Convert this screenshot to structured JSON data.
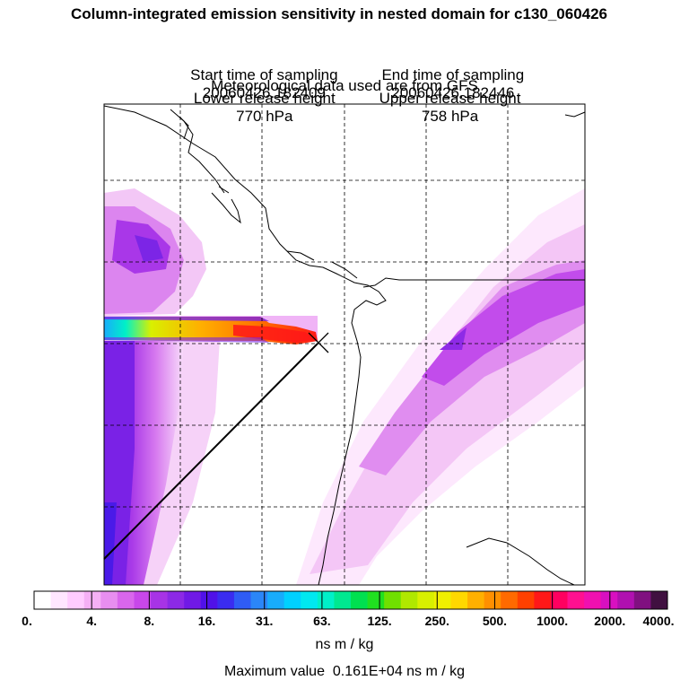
{
  "title": "Column-integrated emission sensitivity in nested domain for c130_060426",
  "start_label": "Start time of sampling",
  "start_value": "20060426.182409",
  "end_label": "End time of sampling",
  "end_value": "20060426.182446",
  "lower_label": "Lower release height",
  "lower_value": "770 hPa",
  "upper_label": "Upper release height",
  "upper_value": "758 hPa",
  "met_text": "Meteorological data used are from GFS",
  "colorbar": {
    "ticks": [
      "0.",
      "4.",
      "8.",
      "16.",
      "31.",
      "63.",
      "125.",
      "250.",
      "500.",
      "1000.",
      "2000.",
      "4000."
    ],
    "colors": [
      "#ffffff",
      "#ffe6ff",
      "#ffccff",
      "#f5b0f5",
      "#e88ef0",
      "#d966ec",
      "#c847ea",
      "#a733e6",
      "#8c29e6",
      "#7019e6",
      "#5011e8",
      "#3a2cf0",
      "#2f5cf5",
      "#2b86f8",
      "#18acfb",
      "#00d0ff",
      "#00e8f0",
      "#00f0c8",
      "#00e890",
      "#00e050",
      "#20e020",
      "#70e000",
      "#b0e800",
      "#d8f000",
      "#f0f000",
      "#ffd800",
      "#ffb000",
      "#ff9000",
      "#ff6a00",
      "#ff4000",
      "#ff1818",
      "#ff0060",
      "#ff1090",
      "#f010b0",
      "#d810c0",
      "#b010b0",
      "#801080",
      "#401040"
    ],
    "units": "ns m / kg"
  },
  "max_value_text": "Maximum value  0.161E+04 ns m / kg",
  "map": {
    "region": "North American Pacific Northwest coast",
    "release_point_marker": "x-cross",
    "peak_sensitivity": 1610
  }
}
